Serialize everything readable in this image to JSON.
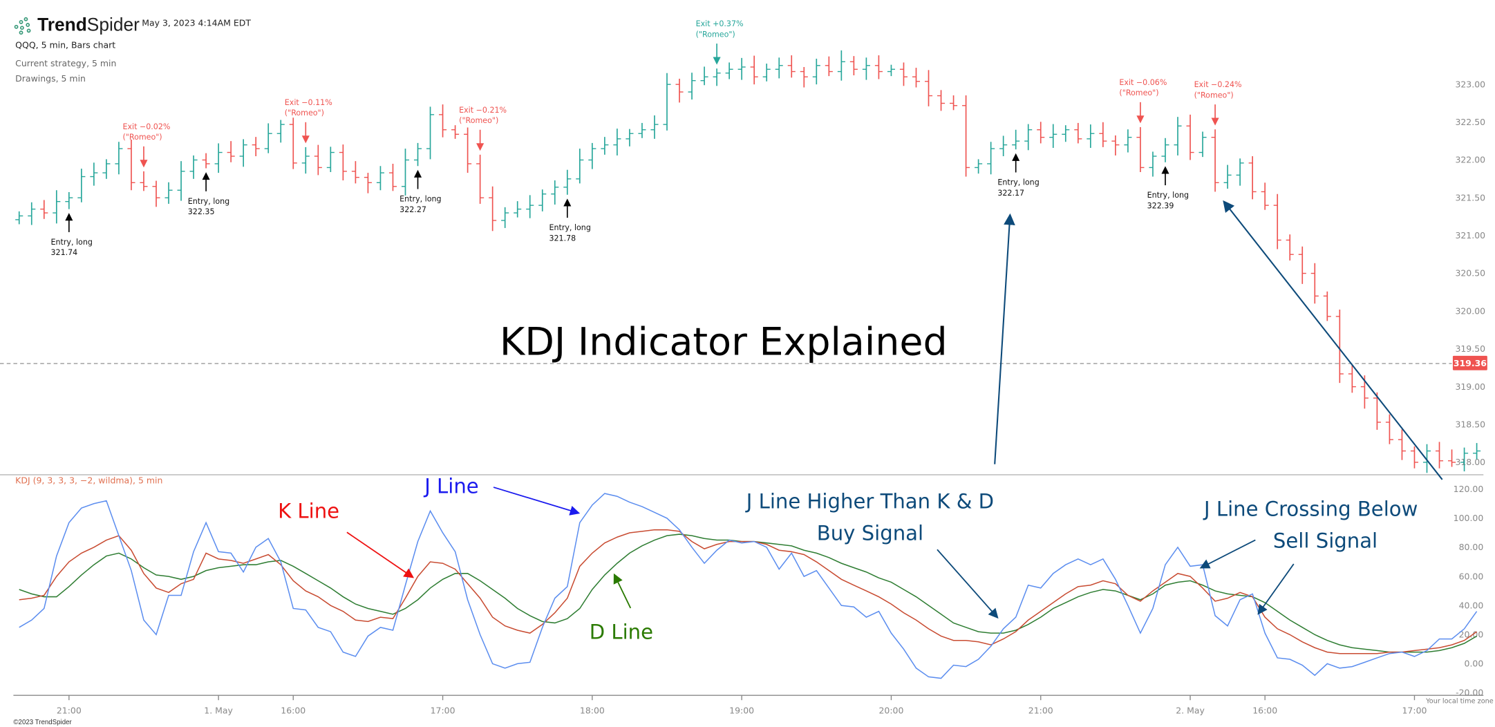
{
  "header": {
    "brand_bold": "Trend",
    "brand_light": "Spider",
    "timestamp": "May 3, 2023 4:14AM EDT",
    "symbol_line": "QQQ, 5 min, Bars chart",
    "strategy_line": "Current strategy, 5 min",
    "drawings_line": "Drawings, 5 min"
  },
  "footer": {
    "copyright": "©2023 TrendSpider",
    "timezone_note": "Your local time zone"
  },
  "colors": {
    "up_bar": "#26a69a",
    "down_bar": "#ef5350",
    "j_line": "#5b8def",
    "k_line": "#c84b31",
    "d_line": "#2e7d32",
    "price_badge": "#ef5350",
    "annotation_blue": "#0d4a7a",
    "entry_marker": "#000000",
    "brand": "#3a9a7a"
  },
  "chart_data": [
    {
      "type": "ohlc-bars",
      "ylim": [
        317.8,
        324.1
      ],
      "y_ticks": [
        "318.00",
        "318.50",
        "319.00",
        "319.50",
        "320.00",
        "320.50",
        "321.00",
        "321.50",
        "322.00",
        "322.50",
        "323.00"
      ],
      "grid": false,
      "last_price": "319.36",
      "closes": [
        321.26,
        321.35,
        321.3,
        321.45,
        321.5,
        321.78,
        321.83,
        321.95,
        322.15,
        321.7,
        321.65,
        321.5,
        321.6,
        321.85,
        322.0,
        321.95,
        322.1,
        322.05,
        322.2,
        322.15,
        322.35,
        322.47,
        321.96,
        322.05,
        321.9,
        322.1,
        321.85,
        321.77,
        321.7,
        321.83,
        321.65,
        322.0,
        322.15,
        322.6,
        322.4,
        322.34,
        321.95,
        321.5,
        321.2,
        321.3,
        321.35,
        321.4,
        321.55,
        321.64,
        321.75,
        322.0,
        322.15,
        322.2,
        322.28,
        322.35,
        322.4,
        322.47,
        323.0,
        322.9,
        323.05,
        323.1,
        323.15,
        323.2,
        323.23,
        323.1,
        323.2,
        323.25,
        323.17,
        323.1,
        323.25,
        323.17,
        323.3,
        323.2,
        323.25,
        323.17,
        323.2,
        323.1,
        323.04,
        322.85,
        322.75,
        322.72,
        321.9,
        321.95,
        322.15,
        322.2,
        322.25,
        322.4,
        322.3,
        322.34,
        322.4,
        322.28,
        322.35,
        322.25,
        322.2,
        322.3,
        321.9,
        322.05,
        322.2,
        322.45,
        322.1,
        322.3,
        321.7,
        321.8,
        321.96,
        321.58,
        321.4,
        320.94,
        320.75,
        320.5,
        320.2,
        319.93,
        319.17,
        319.0,
        318.85,
        318.53,
        318.3,
        318.15,
        318.0,
        318.15,
        318.02,
        318.0,
        318.12,
        318.15
      ],
      "signals": [
        {
          "bar": 4,
          "type": "entry",
          "line1": "Entry, long",
          "line2": "321.74"
        },
        {
          "bar": 10,
          "type": "exit",
          "line1": "Exit −0.02%",
          "line2": "(\"Romeo\")"
        },
        {
          "bar": 15,
          "type": "entry",
          "line1": "Entry, long",
          "line2": "322.35"
        },
        {
          "bar": 23,
          "type": "exit",
          "line1": "Exit −0.11%",
          "line2": "(\"Romeo\")"
        },
        {
          "bar": 32,
          "type": "entry",
          "line1": "Entry, long",
          "line2": "322.27"
        },
        {
          "bar": 37,
          "type": "exit",
          "line1": "Exit −0.21%",
          "line2": "(\"Romeo\")"
        },
        {
          "bar": 44,
          "type": "entry",
          "line1": "Entry, long",
          "line2": "321.78"
        },
        {
          "bar": 56,
          "type": "exit-profit",
          "line1": "Exit +0.37%",
          "line2": "(\"Romeo\")"
        },
        {
          "bar": 80,
          "type": "entry",
          "line1": "Entry, long",
          "line2": "322.17"
        },
        {
          "bar": 90,
          "type": "exit",
          "line1": "Exit −0.06%",
          "line2": "(\"Romeo\")"
        },
        {
          "bar": 92,
          "type": "entry",
          "line1": "Entry, long",
          "line2": "322.39"
        },
        {
          "bar": 96,
          "type": "exit",
          "line1": "Exit −0.24%",
          "line2": "(\"Romeo\")"
        }
      ]
    },
    {
      "type": "line",
      "title": "KDJ (9, 3, 3, 3, −2, wildma), 5 min",
      "ylim": [
        -22,
        125
      ],
      "y_ticks": [
        "120.00",
        "100.00",
        "80.00",
        "60.00",
        "40.00",
        "20.00",
        "0.00",
        "-20.00"
      ],
      "x_ticks": [
        "21:00",
        "1. May",
        "16:00",
        "17:00",
        "18:00",
        "19:00",
        "20:00",
        "21:00",
        "2. May",
        "16:00",
        "17:00"
      ],
      "x_tick_bars": [
        4,
        16,
        22,
        34,
        46,
        58,
        70,
        82,
        94,
        100,
        112
      ],
      "grid": false,
      "series": [
        {
          "name": "J Line",
          "values": [
            25,
            30,
            38,
            74,
            97,
            107,
            110,
            112,
            88,
            64,
            30,
            20,
            47,
            47,
            77,
            97,
            77,
            76,
            63,
            80,
            86,
            70,
            38,
            37,
            25,
            22,
            8,
            5,
            19,
            25,
            23,
            54,
            84,
            105,
            90,
            77,
            44,
            20,
            0,
            -3,
            0,
            1,
            25,
            45,
            53,
            97,
            109,
            117,
            115,
            111,
            108,
            104,
            100,
            92,
            80,
            69,
            78,
            85,
            83,
            84,
            80,
            65,
            76,
            60,
            64,
            52,
            40,
            39,
            32,
            36,
            21,
            10,
            -3,
            -9,
            -10,
            -1,
            -2,
            3,
            12,
            24,
            32,
            54,
            52,
            62,
            68,
            72,
            68,
            72,
            58,
            40,
            21,
            38,
            68,
            80,
            67,
            68,
            33,
            26,
            44,
            48,
            21,
            4,
            3,
            -1,
            -8,
            0,
            -3,
            -2,
            1,
            4,
            7,
            8,
            5,
            9,
            17,
            17,
            24,
            36
          ]
        },
        {
          "name": "K Line",
          "values": [
            44,
            45,
            47,
            60,
            70,
            76,
            80,
            85,
            88,
            78,
            62,
            52,
            49,
            55,
            58,
            76,
            72,
            71,
            69,
            72,
            75,
            68,
            57,
            50,
            46,
            40,
            36,
            30,
            29,
            32,
            31,
            45,
            60,
            70,
            69,
            65,
            55,
            45,
            32,
            26,
            23,
            21,
            27,
            35,
            45,
            67,
            76,
            83,
            87,
            90,
            91,
            92,
            92,
            91,
            84,
            79,
            82,
            84,
            84,
            84,
            82,
            78,
            77,
            75,
            70,
            64,
            58,
            54,
            50,
            46,
            41,
            35,
            30,
            24,
            19,
            16,
            16,
            15,
            13,
            17,
            22,
            30,
            36,
            42,
            48,
            53,
            54,
            57,
            55,
            47,
            43,
            50,
            56,
            62,
            60,
            52,
            43,
            45,
            49,
            46,
            32,
            24,
            20,
            15,
            11,
            8,
            7,
            7,
            7,
            7,
            8,
            8,
            9,
            10,
            11,
            13,
            16,
            22
          ]
        },
        {
          "name": "D Line",
          "values": [
            51,
            48,
            46,
            46,
            53,
            61,
            68,
            74,
            76,
            72,
            66,
            61,
            60,
            58,
            60,
            64,
            66,
            67,
            68,
            68,
            70,
            71,
            67,
            62,
            57,
            52,
            46,
            41,
            38,
            36,
            34,
            38,
            44,
            52,
            58,
            62,
            62,
            57,
            51,
            45,
            38,
            33,
            29,
            28,
            31,
            38,
            51,
            61,
            69,
            76,
            81,
            85,
            88,
            89,
            88,
            86,
            85,
            85,
            84,
            84,
            83,
            82,
            81,
            78,
            76,
            73,
            69,
            66,
            63,
            59,
            56,
            51,
            46,
            40,
            34,
            28,
            25,
            22,
            21,
            21,
            23,
            27,
            32,
            38,
            42,
            46,
            49,
            51,
            50,
            47,
            44,
            48,
            54,
            56,
            57,
            54,
            50,
            48,
            47,
            46,
            42,
            36,
            30,
            25,
            20,
            16,
            13,
            11,
            10,
            9,
            8,
            8,
            8,
            8,
            9,
            11,
            14,
            19
          ]
        }
      ]
    }
  ],
  "annotations": {
    "title": "KDJ Indicator Explained",
    "j_line": "J Line",
    "k_line": "K Line",
    "d_line": "D Line",
    "buy_line1": "J Line Higher Than K & D",
    "buy_line2": "Buy Signal",
    "sell_line1": "J Line Crossing Below",
    "sell_line2": "Sell Signal"
  }
}
